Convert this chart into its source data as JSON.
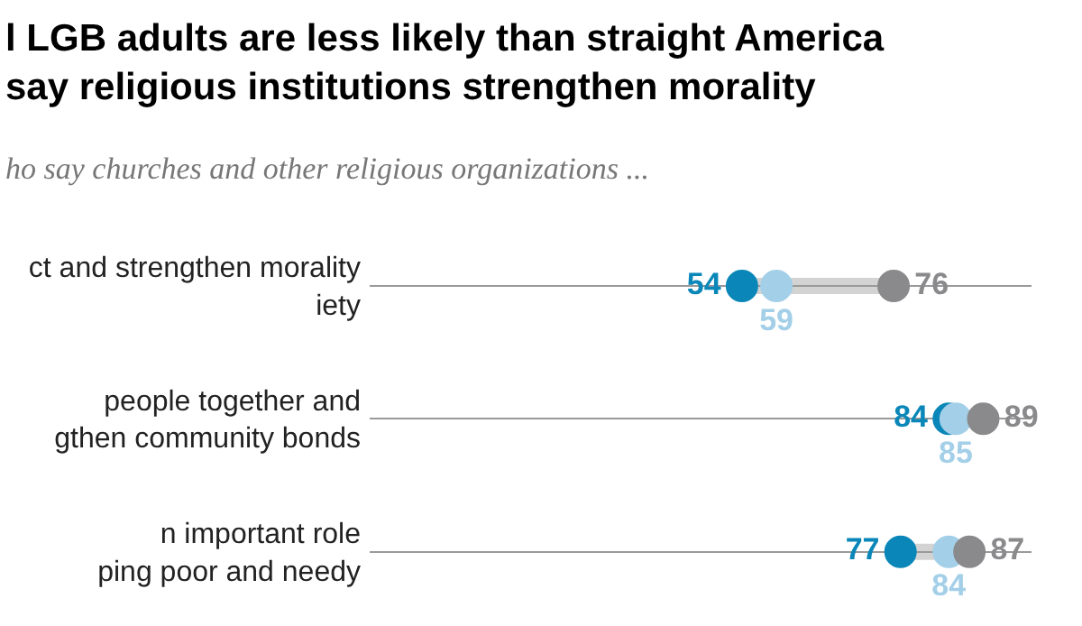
{
  "chart_data": {
    "type": "scatter",
    "orientation": "horizontal",
    "title": "l LGB adults are less likely than straight America\nsay religious institutions strengthen morality",
    "subtitle": "ho say churches and other religious organizations ...",
    "categories": [
      "ct and strengthen morality\niety",
      "people together and\ngthen community bonds",
      "n important role\nping poor and needy"
    ],
    "series": [
      {
        "color": "#0a87b8",
        "values": [
          54,
          84,
          77
        ]
      },
      {
        "color": "#a3cfe8",
        "values": [
          59,
          85,
          84
        ]
      },
      {
        "color": "#8a8a8c",
        "values": [
          76,
          89,
          87
        ]
      }
    ],
    "xlim": [
      0,
      96
    ],
    "tick_labels": "y",
    "data_labels": true,
    "marker": "circle",
    "grid": "y"
  }
}
